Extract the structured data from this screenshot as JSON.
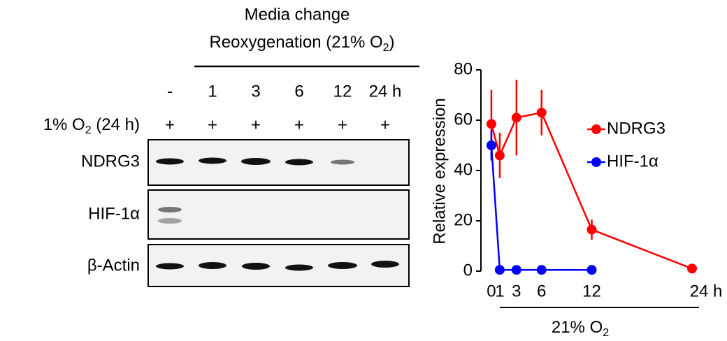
{
  "blot": {
    "header": [
      "Media change",
      "Reoxygenation  (21% O",
      "2",
      ")"
    ],
    "lanes": [
      "-",
      "1",
      "3",
      "6",
      "12",
      "24 h"
    ],
    "condition": {
      "text": "1% O",
      "sub": "2",
      "suffix": " (24 h)",
      "marks": [
        "+",
        "+",
        "+",
        "+",
        "+",
        "+"
      ]
    },
    "rows": [
      "NDRG3",
      "HIF-1α",
      "β-Actin"
    ]
  },
  "chart_data": {
    "type": "line",
    "ylabel": "Relative  expression",
    "xlabel": "21% O",
    "xlabel_sub": "2",
    "x": [
      0,
      1,
      3,
      6,
      12,
      24
    ],
    "xlim": [
      -1.25,
      25.5
    ],
    "xticks": [
      0,
      1,
      3,
      6,
      12,
      {
        "value": 24,
        "label": "24 h"
      }
    ],
    "ylim": [
      0,
      80
    ],
    "yticks": [
      0,
      20,
      40,
      60,
      80
    ],
    "series": [
      {
        "name": "NDRG3",
        "color": "#ff0000",
        "values": [
          58.5,
          46,
          61,
          63,
          16.5,
          1
        ],
        "errors": [
          13.5,
          9,
          15,
          9,
          4,
          0
        ]
      },
      {
        "name": "HIF-1α",
        "color": "#0000ff",
        "values": [
          50,
          0.5,
          0.5,
          0.5,
          0.5,
          null
        ],
        "errors": [
          6,
          0,
          0,
          0,
          0,
          null
        ]
      }
    ]
  }
}
